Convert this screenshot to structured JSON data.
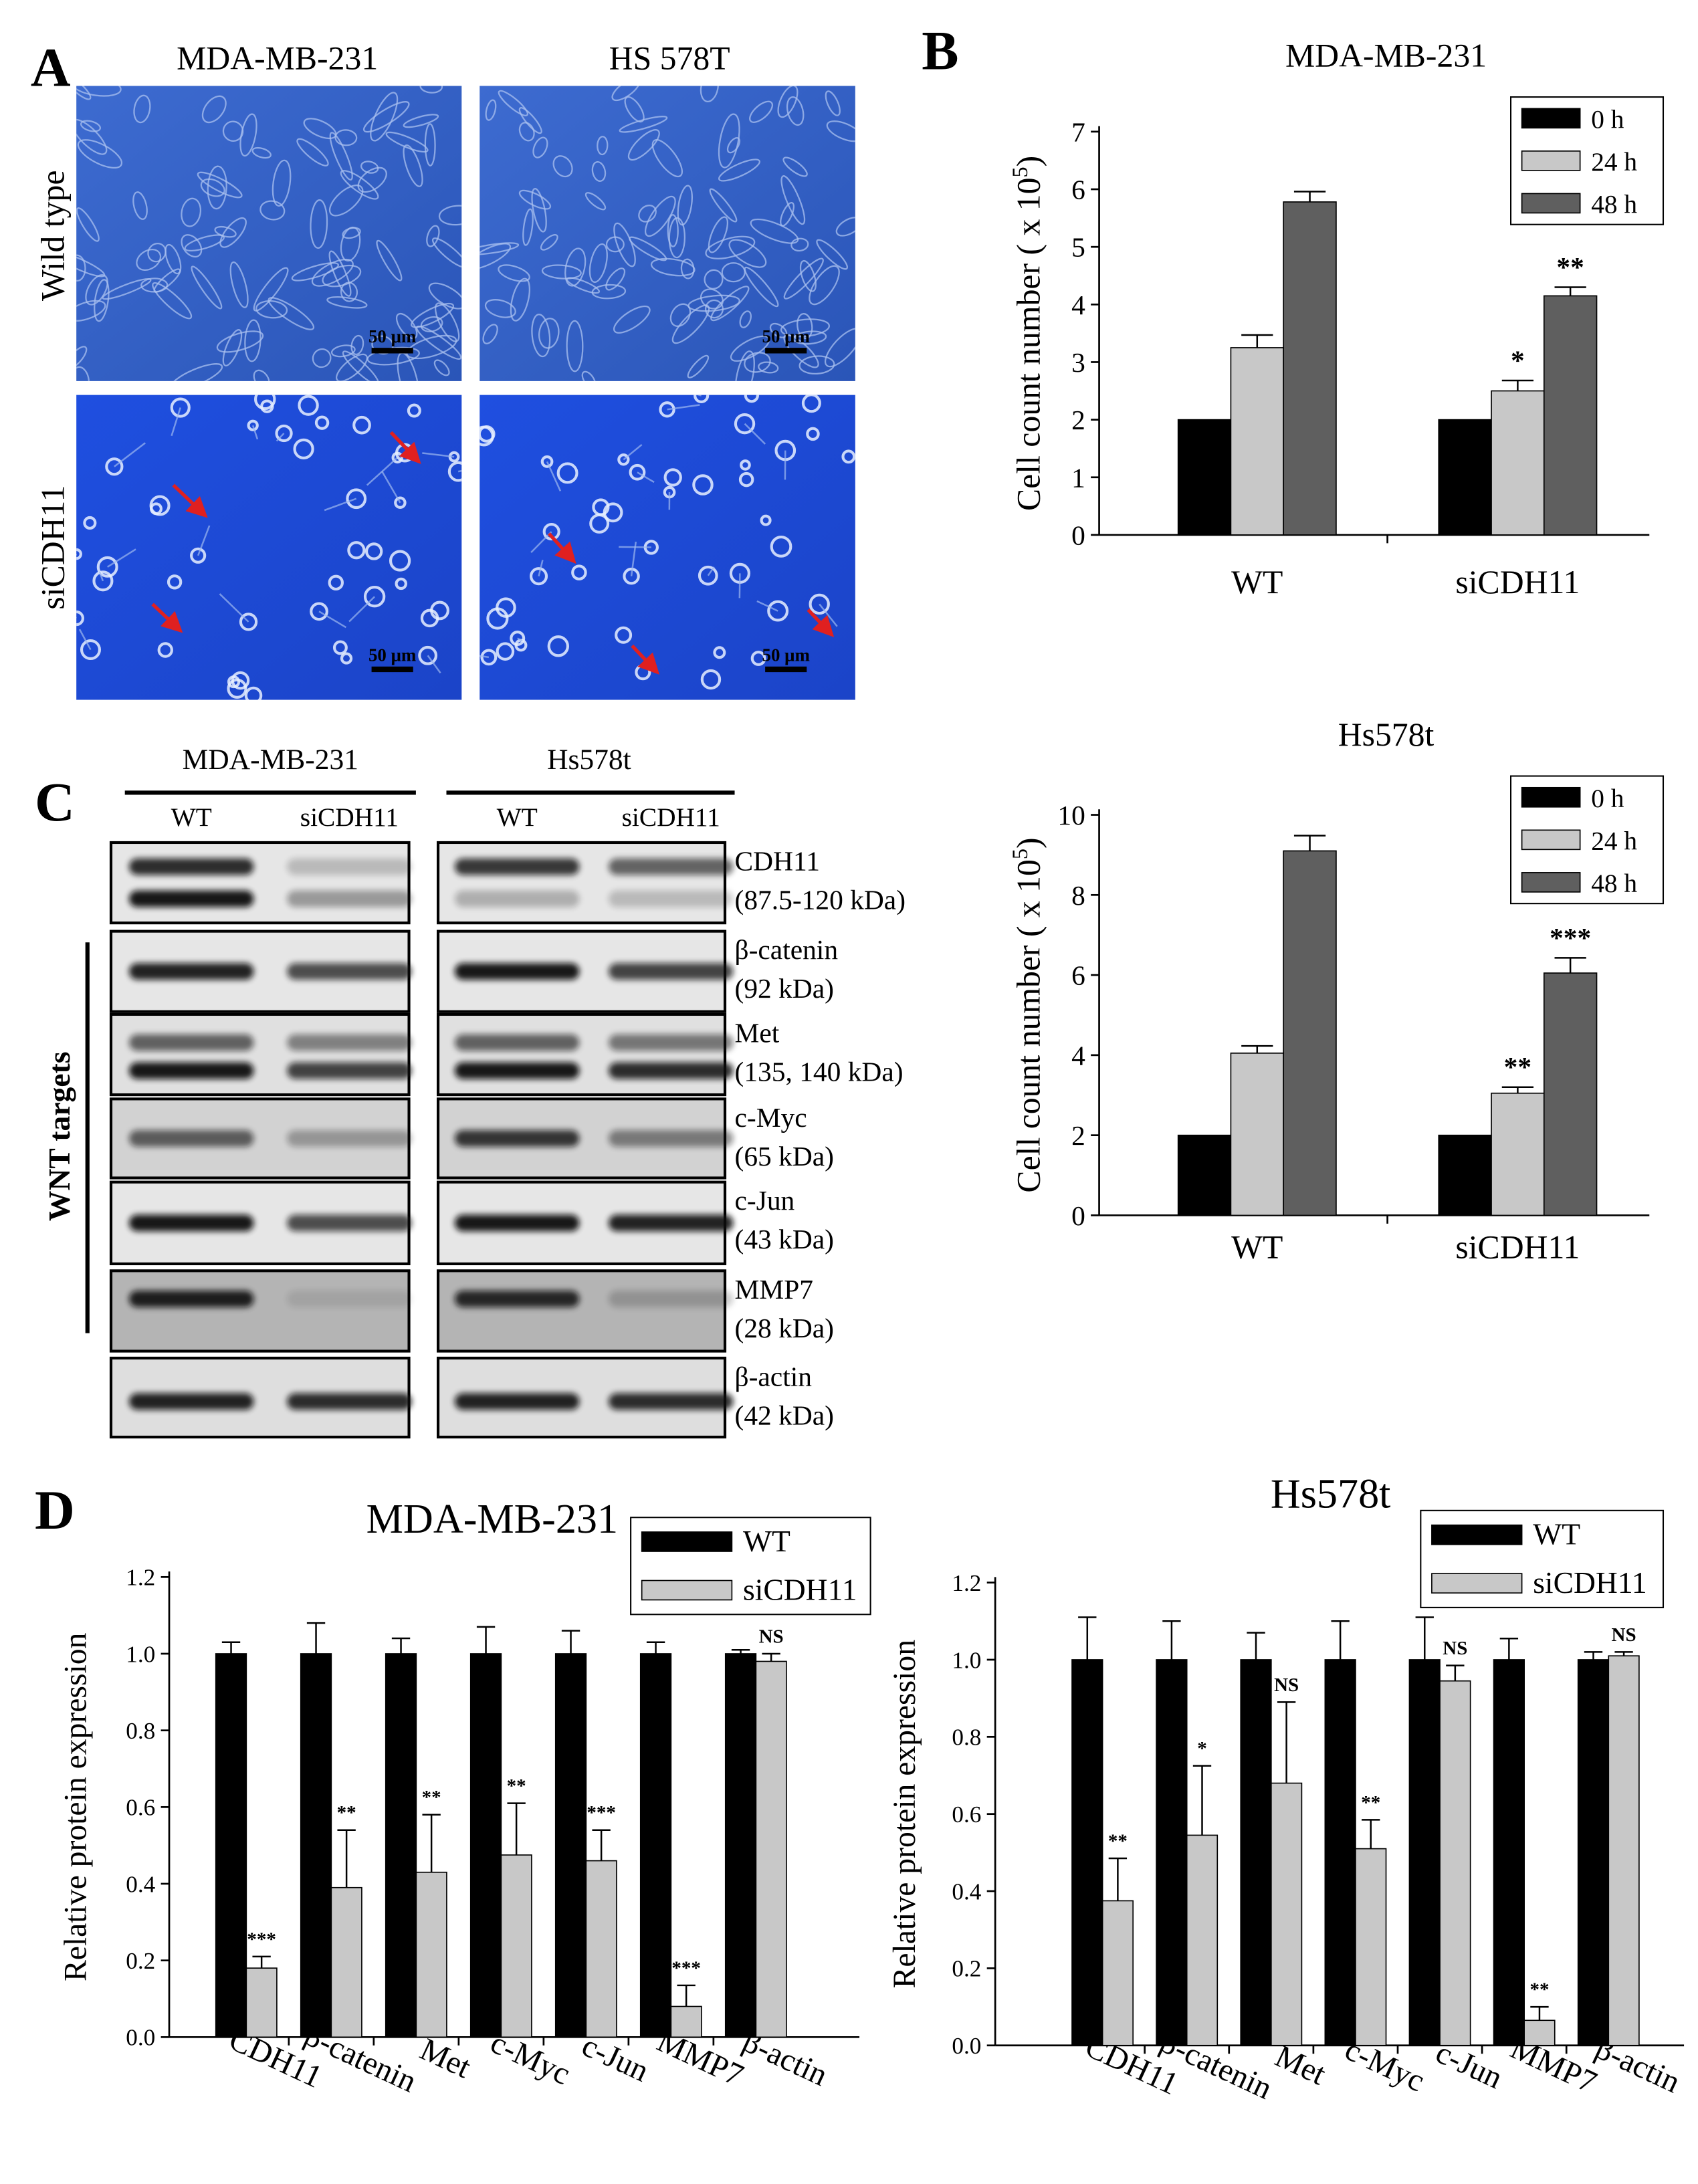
{
  "panels": {
    "A": {
      "letter": "A",
      "columns": [
        "MDA-MB-231",
        "HS 578T"
      ],
      "rows": [
        "Wild type",
        "siCDH11"
      ],
      "scale_bar": "50 μm"
    },
    "B": {
      "letter": "B"
    },
    "C": {
      "letter": "C",
      "cell_lines": [
        "MDA-MB-231",
        "Hs578t"
      ],
      "lanes": [
        "WT",
        "siCDH11"
      ],
      "proteins": [
        {
          "name": "CDH11",
          "size": "(87.5-120 kDa)"
        },
        {
          "name": "β-catenin",
          "size": "(92 kDa)"
        },
        {
          "name": "Met",
          "size": "(135, 140 kDa)"
        },
        {
          "name": "c-Myc",
          "size": "(65 kDa)"
        },
        {
          "name": "c-Jun",
          "size": "(43 kDa)"
        },
        {
          "name": "MMP7",
          "size": "(28 kDa)"
        },
        {
          "name": "β-actin",
          "size": "(42 kDa)"
        }
      ],
      "group_label": "WNT targets"
    },
    "D": {
      "letter": "D"
    }
  },
  "chart_data": [
    {
      "type": "bar",
      "title": "MDA-MB-231",
      "y_label": "Cell count number ( x 10",
      "y_label_exponent": "5",
      "y_label_end": ")",
      "categories": [
        "WT",
        "siCDH11"
      ],
      "series": [
        {
          "name": "0 h",
          "color": "#000000",
          "values": [
            2,
            2
          ]
        },
        {
          "name": "24 h",
          "color": "#c8c8c8",
          "values": [
            3.25,
            2.5
          ],
          "errors": [
            0.22,
            0.18
          ],
          "annotations": [
            null,
            "*"
          ]
        },
        {
          "name": "48 h",
          "color": "#5f5f5f",
          "values": [
            5.78,
            4.15
          ],
          "errors": [
            0.18,
            0.15
          ],
          "annotations": [
            null,
            "**"
          ]
        }
      ],
      "ylim": [
        0,
        7
      ],
      "yticks": [
        0,
        1,
        2,
        3,
        4,
        5,
        6,
        7
      ],
      "legend": true
    },
    {
      "type": "bar",
      "title": "Hs578t",
      "y_label": "Cell count number ( x 10",
      "y_label_exponent": "5",
      "y_label_end": ")",
      "categories": [
        "WT",
        "siCDH11"
      ],
      "series": [
        {
          "name": "0 h",
          "color": "#000000",
          "values": [
            2,
            2
          ]
        },
        {
          "name": "24 h",
          "color": "#c8c8c8",
          "values": [
            4.05,
            3.05
          ],
          "errors": [
            0.18,
            0.15
          ],
          "annotations": [
            null,
            "**"
          ]
        },
        {
          "name": "48 h",
          "color": "#5f5f5f",
          "values": [
            9.1,
            6.05
          ],
          "errors": [
            0.38,
            0.38
          ],
          "annotations": [
            null,
            "***"
          ]
        }
      ],
      "ylim": [
        0,
        10
      ],
      "yticks": [
        0,
        2,
        4,
        6,
        8,
        10
      ],
      "legend": true
    },
    {
      "type": "bar",
      "title": "MDA-MB-231",
      "y_label": "Relative protein expression",
      "categories": [
        "CDH11",
        "β-catenin",
        "Met",
        "c-Myc",
        "c-Jun",
        "MMP7",
        "β-actin"
      ],
      "series": [
        {
          "name": "WT",
          "color": "#000000",
          "values": [
            1,
            1,
            1,
            1,
            1,
            1,
            1
          ],
          "errors": [
            0.03,
            0.08,
            0.04,
            0.07,
            0.06,
            0.03,
            0.01
          ]
        },
        {
          "name": "siCDH11",
          "color": "#c8c8c8",
          "values": [
            0.18,
            0.39,
            0.43,
            0.475,
            0.46,
            0.08,
            0.98
          ],
          "errors": [
            0.03,
            0.15,
            0.15,
            0.135,
            0.08,
            0.055,
            0.02
          ],
          "annotations": [
            "***",
            "**",
            "**",
            "**",
            "***",
            "***",
            "NS"
          ]
        }
      ],
      "ylim": [
        0,
        1.2
      ],
      "yticks": [
        {
          "value": 0,
          "label": "0.0"
        },
        0.2,
        0.4,
        0.6,
        0.8,
        {
          "value": 1,
          "label": "1.0"
        },
        1.2
      ],
      "legend": true
    },
    {
      "type": "bar",
      "title": "Hs578t",
      "y_label": "Relative protein expression",
      "categories": [
        "CDH11",
        "β-catenin",
        "Met",
        "c-Myc",
        "c-Jun",
        "MMP7",
        "β-actin"
      ],
      "series": [
        {
          "name": "WT",
          "color": "#000000",
          "values": [
            1,
            1,
            1,
            1,
            1,
            1,
            1
          ],
          "errors": [
            0.11,
            0.1,
            0.07,
            0.1,
            0.11,
            0.055,
            0.02
          ]
        },
        {
          "name": "siCDH11",
          "color": "#c8c8c8",
          "values": [
            0.375,
            0.545,
            0.68,
            0.51,
            0.945,
            0.065,
            1.01
          ],
          "errors": [
            0.11,
            0.18,
            0.21,
            0.075,
            0.04,
            0.035,
            0.01
          ],
          "annotations": [
            "**",
            "*",
            "NS",
            "**",
            "NS",
            "**",
            "NS"
          ]
        }
      ],
      "ylim": [
        0,
        1.2
      ],
      "yticks": [
        {
          "value": 0,
          "label": "0.0"
        },
        0.2,
        0.4,
        0.6,
        0.8,
        {
          "value": 1,
          "label": "1.0"
        },
        1.2
      ],
      "legend": true
    }
  ]
}
